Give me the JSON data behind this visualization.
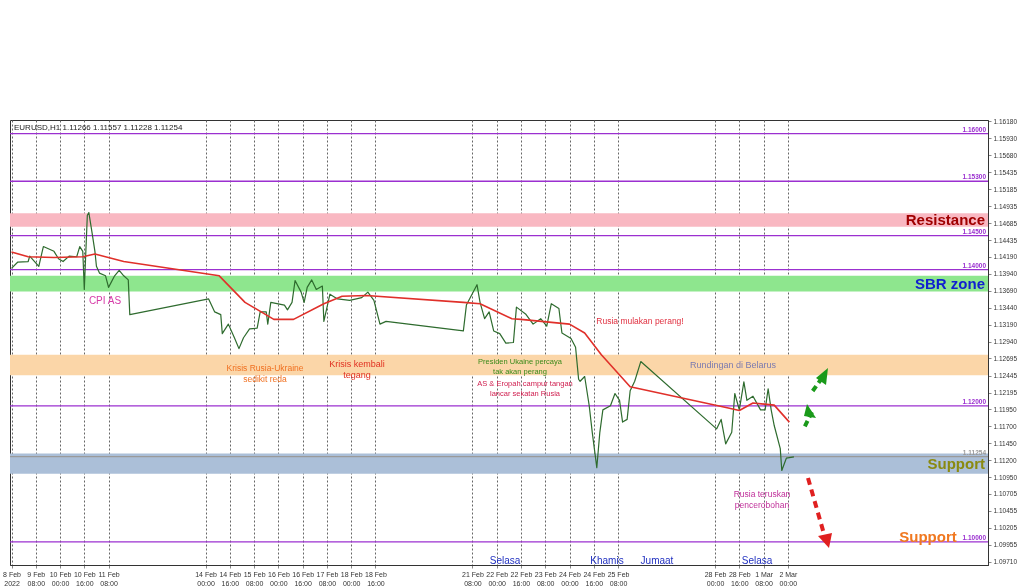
{
  "chart_data": {
    "type": "line",
    "annotations": [
      "EURUSD,H1 1.11266 1.11557 1.11228 1.11254",
      "CPI AS",
      "Krisis Rusia-Ukraine\nsedikit reda",
      "Krisis kembali\ntegang",
      "Presiden Ukaine percaya\ntak akan perang",
      "AS & Eropah campur tangan\nlancar sekatan Rusia",
      "Rusia mulakan perang!",
      "Rundingan di Belarus",
      "Rusia teruskan\npencerobohan",
      "Selasa",
      "Khamis",
      "Jumaat",
      "Selasa",
      "Support"
    ],
    "xlim": [
      "2022-02-08T15:00",
      "2022-03-07T12:00"
    ],
    "xticks": [
      {
        "value": "2022-02-08T16:00",
        "label": "8 Feb 2022"
      },
      {
        "value": "2022-02-09T08:00",
        "label": "9 Feb 08:00"
      },
      {
        "value": "2022-02-10T00:00",
        "label": "10 Feb 00:00"
      },
      {
        "value": "2022-02-10T16:00",
        "label": "10 Feb 16:00"
      },
      {
        "value": "2022-02-11T08:00",
        "label": "11 Feb 08:00"
      },
      {
        "value": "2022-02-14T00:00",
        "label": "14 Feb 00:00"
      },
      {
        "value": "2022-02-14T16:00",
        "label": "14 Feb 16:00"
      },
      {
        "value": "2022-02-15T08:00",
        "label": "15 Feb 08:00"
      },
      {
        "value": "2022-02-16T00:00",
        "label": "16 Feb 00:00"
      },
      {
        "value": "2022-02-16T16:00",
        "label": "16 Feb 16:00"
      },
      {
        "value": "2022-02-17T08:00",
        "label": "17 Feb 08:00"
      },
      {
        "value": "2022-02-18T00:00",
        "label": "18 Feb 00:00"
      },
      {
        "value": "2022-02-18T16:00",
        "label": "18 Feb 16:00"
      },
      {
        "value": "2022-02-21T08:00",
        "label": "21 Feb 08:00"
      },
      {
        "value": "2022-02-22T00:00",
        "label": "22 Feb 00:00"
      },
      {
        "value": "2022-02-22T16:00",
        "label": "22 Feb 16:00"
      },
      {
        "value": "2022-02-23T08:00",
        "label": "23 Feb 08:00"
      },
      {
        "value": "2022-02-24T00:00",
        "label": "24 Feb 00:00"
      },
      {
        "value": "2022-02-24T16:00",
        "label": "24 Feb 16:00"
      },
      {
        "value": "2022-02-25T08:00",
        "label": "25 Feb 08:00"
      },
      {
        "value": "2022-02-28T00:00",
        "label": "28 Feb 00:00"
      },
      {
        "value": "2022-02-28T16:00",
        "label": "28 Feb 16:00"
      },
      {
        "value": "2022-03-01T08:00",
        "label": "1 Mar 08:00"
      },
      {
        "value": "2022-03-02T00:00",
        "label": "2 Mar 00:00"
      }
    ],
    "ylim": [
      1.0966,
      1.162
    ],
    "yticks": [
      {
        "value": 1.0971,
        "label": "1.09710"
      },
      {
        "value": 1.09955,
        "label": "1.09955"
      },
      {
        "value": 1.10205,
        "label": "1.10205"
      },
      {
        "value": 1.10455,
        "label": "1.10455"
      },
      {
        "value": 1.10705,
        "label": "1.10705"
      },
      {
        "value": 1.1095,
        "label": "1.10950"
      },
      {
        "value": 1.112,
        "label": "1.11200"
      },
      {
        "value": 1.1145,
        "label": "1.11450"
      },
      {
        "value": 1.117,
        "label": "1.11700"
      },
      {
        "value": 1.1195,
        "label": "1.11950"
      },
      {
        "value": 1.12195,
        "label": "1.12195"
      },
      {
        "value": 1.12445,
        "label": "1.12445"
      },
      {
        "value": 1.12695,
        "label": "1.12695"
      },
      {
        "value": 1.1294,
        "label": "1.12940"
      },
      {
        "value": 1.1319,
        "label": "1.13190"
      },
      {
        "value": 1.1344,
        "label": "1.13440"
      },
      {
        "value": 1.1369,
        "label": "1.13690"
      },
      {
        "value": 1.1394,
        "label": "1.13940"
      },
      {
        "value": 1.1419,
        "label": "1.14190"
      },
      {
        "value": 1.14435,
        "label": "1.14435"
      },
      {
        "value": 1.14685,
        "label": "1.14685"
      },
      {
        "value": 1.14935,
        "label": "1.14935"
      },
      {
        "value": 1.15185,
        "label": "1.15185"
      },
      {
        "value": 1.15435,
        "label": "1.15435"
      },
      {
        "value": 1.1568,
        "label": "1.15680"
      },
      {
        "value": 1.1593,
        "label": "1.15930"
      },
      {
        "value": 1.1618,
        "label": "1.16180"
      }
    ],
    "grid": "x",
    "bands": [
      {
        "axis": "y",
        "from": 1.1463,
        "to": 1.1483,
        "label": "Resistance",
        "color": "#f9b8c2"
      },
      {
        "axis": "y",
        "from": 1.1368,
        "to": 1.1391,
        "label": "SBR zone",
        "color": "#8ee68e"
      },
      {
        "axis": "y",
        "from": 1.1245,
        "to": 1.1275,
        "label": null,
        "color": "#fbd6a8"
      },
      {
        "axis": "y",
        "from": 1.11,
        "to": 1.113,
        "label": "Support",
        "color": "#abbfd8"
      }
    ],
    "ref_lines": [
      {
        "axis": "y",
        "value": 1.16,
        "label": "1.16000",
        "color": "#9b30d0"
      },
      {
        "axis": "y",
        "value": 1.153,
        "label": "1.15300",
        "color": "#9b30d0"
      },
      {
        "axis": "y",
        "value": 1.145,
        "label": "1.14500",
        "color": "#9b30d0"
      },
      {
        "axis": "y",
        "value": 1.14,
        "label": "1.14000",
        "color": "#9b30d0"
      },
      {
        "axis": "y",
        "value": 1.12,
        "label": "1.12000",
        "color": "#9b30d0"
      },
      {
        "axis": "y",
        "value": 1.1,
        "label": "1.10000",
        "color": "#9b30d0"
      },
      {
        "axis": "y",
        "value": 1.11254,
        "label": "1.11254",
        "color": "#9a9a9a"
      }
    ],
    "series": [
      {
        "color": "#2e6b2e",
        "x": [
          "2022-02-08T16:00",
          "2022-02-08T20:00",
          "2022-02-09T03:00",
          "2022-02-09T04:00",
          "2022-02-09T10:00",
          "2022-02-09T13:00",
          "2022-02-09T20:00",
          "2022-02-09T23:00",
          "2022-02-10T02:00",
          "2022-02-10T06:00",
          "2022-02-10T11:00",
          "2022-02-10T13:00",
          "2022-02-10T15:00",
          "2022-02-10T16:00",
          "2022-02-10T18:00",
          "2022-02-10T19:00",
          "2022-02-10T21:00",
          "2022-02-10T23:00",
          "2022-02-11T00:00",
          "2022-02-11T02:00",
          "2022-02-11T06:00",
          "2022-02-11T08:00",
          "2022-02-11T12:00",
          "2022-02-11T15:00",
          "2022-02-11T18:00",
          "2022-02-11T21:00",
          "2022-02-11T22:00",
          "2022-02-14T02:00",
          "2022-02-14T06:00",
          "2022-02-14T10:00",
          "2022-02-14T11:00",
          "2022-02-14T15:00",
          "2022-02-14T19:00",
          "2022-02-14T22:00",
          "2022-02-15T01:00",
          "2022-02-15T05:00",
          "2022-02-15T10:00",
          "2022-02-15T12:00",
          "2022-02-15T16:00",
          "2022-02-15T17:00",
          "2022-02-15T19:00",
          "2022-02-16T04:00",
          "2022-02-16T06:00",
          "2022-02-16T09:00",
          "2022-02-16T11:00",
          "2022-02-16T15:00",
          "2022-02-16T17:00",
          "2022-02-16T19:00",
          "2022-02-16T22:00",
          "2022-02-17T01:00",
          "2022-02-17T05:00",
          "2022-02-17T06:00",
          "2022-02-17T10:00",
          "2022-02-17T15:00",
          "2022-02-17T23:00",
          "2022-02-18T07:00",
          "2022-02-18T11:00",
          "2022-02-18T15:00",
          "2022-02-18T19:00",
          "2022-02-18T23:00",
          "2022-02-21T02:00",
          "2022-02-21T04:00",
          "2022-02-21T11:00",
          "2022-02-21T13:00",
          "2022-02-21T16:00",
          "2022-02-21T19:00",
          "2022-02-21T22:00",
          "2022-02-22T02:00",
          "2022-02-22T06:00",
          "2022-02-22T11:00",
          "2022-02-22T13:00",
          "2022-02-22T19:00",
          "2022-02-23T00:00",
          "2022-02-23T05:00",
          "2022-02-23T09:00",
          "2022-02-23T12:00",
          "2022-02-23T17:00",
          "2022-02-23T19:00",
          "2022-02-24T01:00",
          "2022-02-24T04:00",
          "2022-02-24T06:00",
          "2022-02-24T07:00",
          "2022-02-24T10:00",
          "2022-02-24T13:00",
          "2022-02-24T15:00",
          "2022-02-24T18:00",
          "2022-02-24T20:00",
          "2022-02-24T22:00",
          "2022-02-25T03:00",
          "2022-02-25T06:00",
          "2022-02-25T09:00",
          "2022-02-25T11:00",
          "2022-02-25T14:00",
          "2022-02-25T16:00",
          "2022-02-25T19:00",
          "2022-02-25T23:00",
          "2022-02-28T01:00",
          "2022-02-28T04:00",
          "2022-02-28T07:00",
          "2022-02-28T11:00",
          "2022-02-28T13:00",
          "2022-02-28T16:00",
          "2022-02-28T19:00",
          "2022-02-28T21:00",
          "2022-03-01T01:00",
          "2022-03-01T06:00",
          "2022-03-01T09:00",
          "2022-03-01T11:00",
          "2022-03-01T13:00",
          "2022-03-01T15:00",
          "2022-03-01T19:00",
          "2022-03-01T20:00",
          "2022-03-01T23:00",
          "2022-03-02T04:00"
        ],
        "values": [
          1.1402,
          1.1411,
          1.1412,
          1.142,
          1.1405,
          1.1434,
          1.1427,
          1.1416,
          1.1412,
          1.142,
          1.1419,
          1.1434,
          1.1427,
          1.1371,
          1.148,
          1.1484,
          1.1456,
          1.1427,
          1.1405,
          1.1395,
          1.1391,
          1.1374,
          1.1391,
          1.1399,
          1.1391,
          1.1385,
          1.1334,
          1.1357,
          1.1338,
          1.1334,
          1.1306,
          1.132,
          1.13,
          1.1284,
          1.13,
          1.1313,
          1.1314,
          1.1338,
          1.1338,
          1.132,
          1.1352,
          1.1348,
          1.1341,
          1.1352,
          1.1384,
          1.1367,
          1.1352,
          1.1374,
          1.1385,
          1.1371,
          1.1376,
          1.1324,
          1.1364,
          1.1357,
          1.1355,
          1.1359,
          1.1367,
          1.1355,
          1.132,
          1.1324,
          1.131,
          1.1348,
          1.1378,
          1.1352,
          1.1328,
          1.1338,
          1.131,
          1.1306,
          1.1292,
          1.1293,
          1.1345,
          1.1335,
          1.132,
          1.1328,
          1.1317,
          1.135,
          1.1343,
          1.1307,
          1.1299,
          1.1286,
          1.1239,
          1.1236,
          1.1243,
          1.12,
          1.1161,
          1.1109,
          1.1161,
          1.1194,
          1.12,
          1.1218,
          1.1208,
          1.1176,
          1.118,
          1.1222,
          1.1236,
          1.1265,
          1.1166,
          1.118,
          1.1144,
          1.1161,
          1.1218,
          1.1194,
          1.1235,
          1.1208,
          1.1214,
          1.1194,
          1.1194,
          1.1225,
          1.1194,
          1.1171,
          1.1137,
          1.1105,
          1.1123,
          1.1125
        ]
      },
      {
        "color": "#e0302a",
        "x": [
          "2022-02-08T16:00",
          "2022-02-09T03:00",
          "2022-02-09T20:00",
          "2022-02-10T15:00",
          "2022-02-10T23:00",
          "2022-02-11T18:00",
          "2022-02-14T09:00",
          "2022-02-15T02:00",
          "2022-02-15T21:00",
          "2022-02-16T10:00",
          "2022-02-17T06:00",
          "2022-02-17T18:00",
          "2022-02-18T10:00",
          "2022-02-21T02:00",
          "2022-02-21T13:00",
          "2022-02-22T10:00",
          "2022-02-22T16:00",
          "2022-02-24T00:00",
          "2022-02-24T10:00",
          "2022-02-24T21:00",
          "2022-02-25T16:00",
          "2022-02-28T08:00",
          "2022-02-28T16:00",
          "2022-03-01T01:00",
          "2022-03-01T15:00",
          "2022-03-02T01:00"
        ],
        "values": [
          1.1426,
          1.1419,
          1.1418,
          1.1419,
          1.1423,
          1.1412,
          1.1391,
          1.1352,
          1.1327,
          1.1327,
          1.135,
          1.1361,
          1.1362,
          1.1352,
          1.135,
          1.1328,
          1.1327,
          1.132,
          1.1307,
          1.1275,
          1.1228,
          1.1197,
          1.1193,
          1.1204,
          1.1201,
          1.1176
        ]
      }
    ]
  }
}
